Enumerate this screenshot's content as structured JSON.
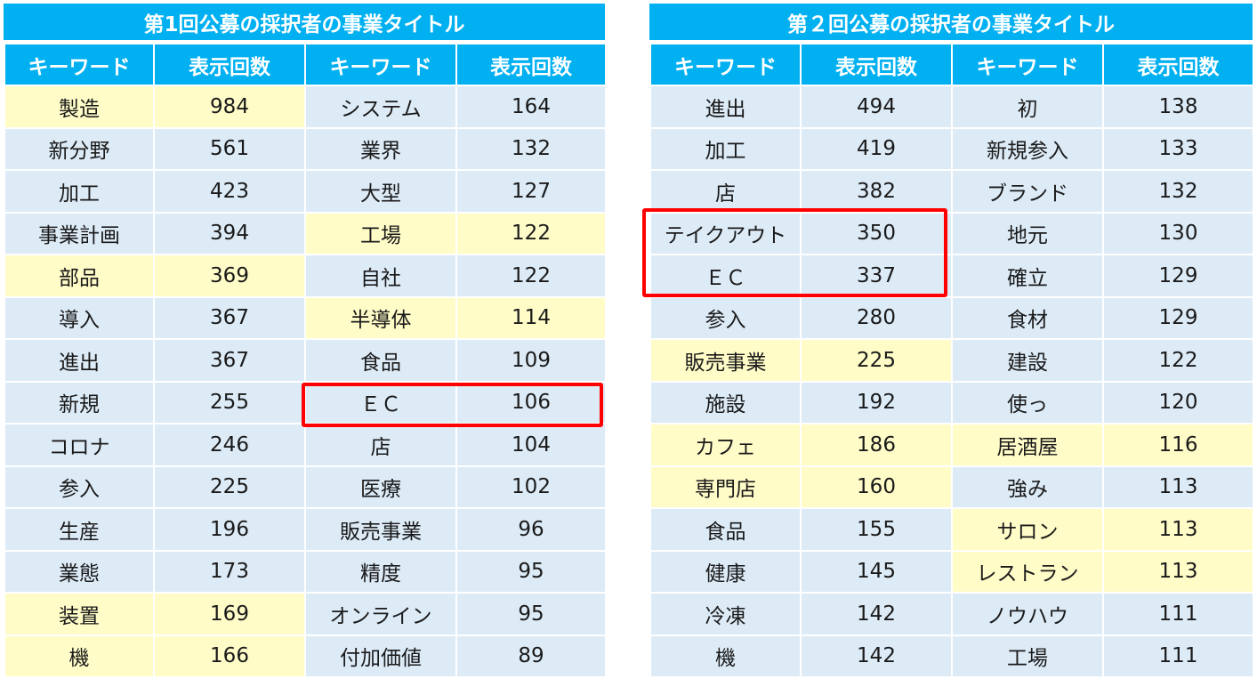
{
  "tables": [
    {
      "title": "第1回公募の採択者の事業タイトル",
      "headers": [
        "キーワード",
        "表示回数",
        "キーワード",
        "表示回数"
      ],
      "rows": [
        {
          "k1": "製造",
          "v1": "984",
          "k2": "システム",
          "v2": "164",
          "h1": true,
          "h2": false
        },
        {
          "k1": "新分野",
          "v1": "561",
          "k2": "業界",
          "v2": "132",
          "h1": false,
          "h2": false
        },
        {
          "k1": "加工",
          "v1": "423",
          "k2": "大型",
          "v2": "127",
          "h1": false,
          "h2": false
        },
        {
          "k1": "事業計画",
          "v1": "394",
          "k2": "工場",
          "v2": "122",
          "h1": false,
          "h2": true
        },
        {
          "k1": "部品",
          "v1": "369",
          "k2": "自社",
          "v2": "122",
          "h1": true,
          "h2": false
        },
        {
          "k1": "導入",
          "v1": "367",
          "k2": "半導体",
          "v2": "114",
          "h1": false,
          "h2": true
        },
        {
          "k1": "進出",
          "v1": "367",
          "k2": "食品",
          "v2": "109",
          "h1": false,
          "h2": false
        },
        {
          "k1": "新規",
          "v1": "255",
          "k2": "ＥＣ",
          "v2": "106",
          "h1": false,
          "h2": false
        },
        {
          "k1": "コロナ",
          "v1": "246",
          "k2": "店",
          "v2": "104",
          "h1": false,
          "h2": false
        },
        {
          "k1": "参入",
          "v1": "225",
          "k2": "医療",
          "v2": "102",
          "h1": false,
          "h2": false
        },
        {
          "k1": "生産",
          "v1": "196",
          "k2": "販売事業",
          "v2": "96",
          "h1": false,
          "h2": false
        },
        {
          "k1": "業態",
          "v1": "173",
          "k2": "精度",
          "v2": "95",
          "h1": false,
          "h2": false
        },
        {
          "k1": "装置",
          "v1": "169",
          "k2": "オンライン",
          "v2": "95",
          "h1": true,
          "h2": false
        },
        {
          "k1": "機",
          "v1": "166",
          "k2": "付加価値",
          "v2": "89",
          "h1": true,
          "h2": false
        }
      ]
    },
    {
      "title": "第２回公募の採択者の事業タイトル",
      "headers": [
        "キーワード",
        "表示回数",
        "キーワード",
        "表示回数"
      ],
      "rows": [
        {
          "k1": "進出",
          "v1": "494",
          "k2": "初",
          "v2": "138",
          "h1": false,
          "h2": false
        },
        {
          "k1": "加工",
          "v1": "419",
          "k2": "新規参入",
          "v2": "133",
          "h1": false,
          "h2": false
        },
        {
          "k1": "店",
          "v1": "382",
          "k2": "ブランド",
          "v2": "132",
          "h1": false,
          "h2": false
        },
        {
          "k1": "テイクアウト",
          "v1": "350",
          "k2": "地元",
          "v2": "130",
          "h1": false,
          "h2": false
        },
        {
          "k1": "ＥＣ",
          "v1": "337",
          "k2": "確立",
          "v2": "129",
          "h1": false,
          "h2": false
        },
        {
          "k1": "参入",
          "v1": "280",
          "k2": "食材",
          "v2": "129",
          "h1": false,
          "h2": false
        },
        {
          "k1": "販売事業",
          "v1": "225",
          "k2": "建設",
          "v2": "122",
          "h1": true,
          "h2": false
        },
        {
          "k1": "施設",
          "v1": "192",
          "k2": "使っ",
          "v2": "120",
          "h1": false,
          "h2": false
        },
        {
          "k1": "カフェ",
          "v1": "186",
          "k2": "居酒屋",
          "v2": "116",
          "h1": true,
          "h2": true
        },
        {
          "k1": "専門店",
          "v1": "160",
          "k2": "強み",
          "v2": "113",
          "h1": true,
          "h2": false
        },
        {
          "k1": "食品",
          "v1": "155",
          "k2": "サロン",
          "v2": "113",
          "h1": false,
          "h2": true
        },
        {
          "k1": "健康",
          "v1": "145",
          "k2": "レストラン",
          "v2": "113",
          "h1": false,
          "h2": true
        },
        {
          "k1": "冷凍",
          "v1": "142",
          "k2": "ノウハウ",
          "v2": "111",
          "h1": false,
          "h2": false
        },
        {
          "k1": "機",
          "v1": "142",
          "k2": "工場",
          "v2": "111",
          "h1": false,
          "h2": false
        }
      ]
    }
  ],
  "colors": {
    "header": "#00b0f0",
    "cell": "#ddebf7",
    "highlight": "#fffcc8",
    "redbox": "#ff0000"
  }
}
